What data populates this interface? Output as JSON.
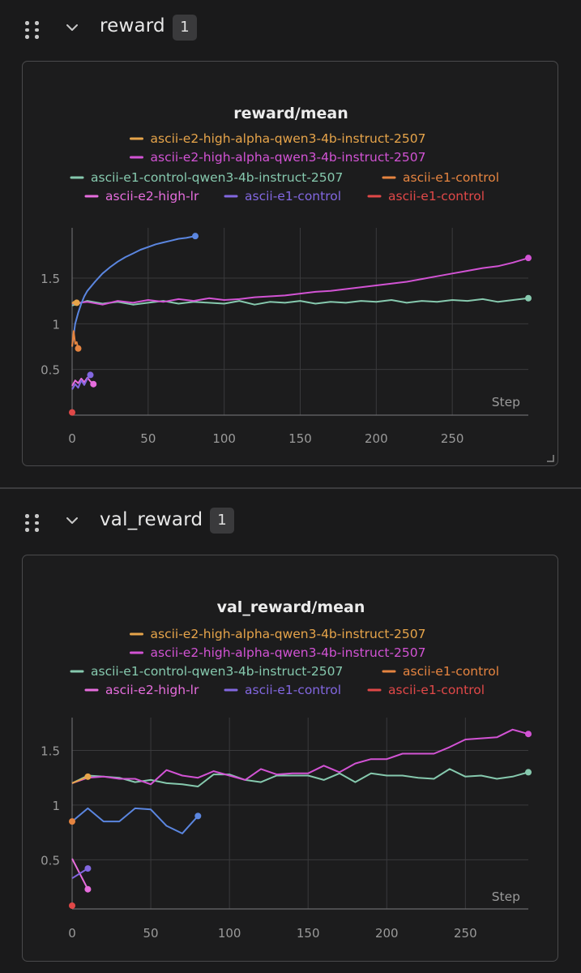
{
  "sections": [
    {
      "title": "reward",
      "badge": "1",
      "chart": {
        "type": "line",
        "title": "reward/mean",
        "xlabel": "Step",
        "ylabel": "",
        "xlim": [
          0,
          300
        ],
        "ylim": [
          0,
          2.05
        ],
        "xticks": [
          0,
          50,
          100,
          150,
          200,
          250
        ],
        "xtick_labels": [
          "0",
          "50",
          "100",
          "150",
          "200",
          "250"
        ],
        "yticks": [
          0.5,
          1,
          1.5
        ],
        "ytick_labels": [
          "0.5",
          "1",
          "1.5"
        ],
        "legend_rows": [
          [
            0
          ],
          [
            1
          ],
          [
            2,
            3
          ],
          [
            4,
            5,
            6
          ]
        ],
        "series": [
          {
            "name": "ascii-e2-high-alpha-qwen3-4b-instruct-2507",
            "color": "#e6a44a",
            "x": [
              0,
              1,
              2,
              3
            ],
            "y": [
              1.22,
              1.24,
              1.21,
              1.23
            ]
          },
          {
            "name": "ascii-e2-high-alpha-qwen3-4b-instruct-2507",
            "color": "#d253d4",
            "x": [
              0,
              10,
              20,
              30,
              40,
              50,
              60,
              70,
              80,
              90,
              100,
              110,
              120,
              130,
              140,
              150,
              160,
              170,
              180,
              190,
              200,
              210,
              220,
              230,
              240,
              250,
              260,
              270,
              280,
              290,
              300
            ],
            "y": [
              1.22,
              1.24,
              1.21,
              1.25,
              1.23,
              1.26,
              1.24,
              1.27,
              1.25,
              1.28,
              1.26,
              1.27,
              1.29,
              1.3,
              1.31,
              1.33,
              1.35,
              1.36,
              1.38,
              1.4,
              1.42,
              1.44,
              1.46,
              1.49,
              1.52,
              1.55,
              1.58,
              1.61,
              1.63,
              1.67,
              1.72
            ]
          },
          {
            "name": "ascii-e1-control-qwen3-4b-instruct-2507",
            "color": "#86c9ae",
            "x": [
              0,
              10,
              20,
              30,
              40,
              50,
              60,
              70,
              80,
              90,
              100,
              110,
              120,
              130,
              140,
              150,
              160,
              170,
              180,
              190,
              200,
              210,
              220,
              230,
              240,
              250,
              260,
              270,
              280,
              290,
              300
            ],
            "y": [
              1.2,
              1.25,
              1.22,
              1.24,
              1.21,
              1.23,
              1.25,
              1.22,
              1.24,
              1.23,
              1.22,
              1.25,
              1.21,
              1.24,
              1.23,
              1.25,
              1.22,
              1.24,
              1.23,
              1.25,
              1.24,
              1.26,
              1.23,
              1.25,
              1.24,
              1.26,
              1.25,
              1.27,
              1.24,
              1.26,
              1.28
            ]
          },
          {
            "name": "ascii-e1-control",
            "color": "#e58440",
            "x": [
              0,
              1,
              2,
              3,
              4
            ],
            "y": [
              0.75,
              0.92,
              0.78,
              0.8,
              0.73
            ]
          },
          {
            "name": "ascii-e2-high-lr",
            "color": "#e66ddd",
            "x": [
              0,
              2,
              4,
              6,
              8,
              10,
              12,
              14
            ],
            "y": [
              0.32,
              0.38,
              0.35,
              0.4,
              0.36,
              0.41,
              0.37,
              0.34
            ]
          },
          {
            "name": "ascii-e1-control",
            "color": "#8267e0",
            "x": [
              0,
              2,
              4,
              6,
              8,
              10,
              12
            ],
            "y": [
              0.28,
              0.34,
              0.3,
              0.38,
              0.33,
              0.4,
              0.44
            ]
          },
          {
            "name": "ascii-e1-control",
            "color": "#e04848",
            "x": [
              0
            ],
            "y": [
              0.03
            ]
          },
          {
            "name": "",
            "color": "#5b86e0",
            "x": [
              0,
              2,
              4,
              6,
              8,
              10,
              15,
              20,
              25,
              30,
              35,
              40,
              45,
              50,
              55,
              60,
              65,
              70,
              75,
              81
            ],
            "y": [
              0.75,
              1.0,
              1.12,
              1.22,
              1.3,
              1.36,
              1.46,
              1.55,
              1.62,
              1.68,
              1.73,
              1.77,
              1.81,
              1.84,
              1.87,
              1.89,
              1.91,
              1.93,
              1.94,
              1.96
            ]
          }
        ]
      }
    },
    {
      "title": "val_reward",
      "badge": "1",
      "chart": {
        "type": "line",
        "title": "val_reward/mean",
        "xlabel": "Step",
        "ylabel": "",
        "xlim": [
          0,
          290
        ],
        "ylim": [
          0.05,
          1.8
        ],
        "xticks": [
          0,
          50,
          100,
          150,
          200,
          250
        ],
        "xtick_labels": [
          "0",
          "50",
          "100",
          "150",
          "200",
          "250"
        ],
        "yticks": [
          0.5,
          1,
          1.5
        ],
        "ytick_labels": [
          "0.5",
          "1",
          "1.5"
        ],
        "legend_rows": [
          [
            0
          ],
          [
            1
          ],
          [
            2,
            3
          ],
          [
            4,
            5,
            6
          ]
        ],
        "series": [
          {
            "name": "ascii-e2-high-alpha-qwen3-4b-instruct-2507",
            "color": "#e6a44a",
            "x": [
              0,
              10
            ],
            "y": [
              1.2,
              1.26
            ]
          },
          {
            "name": "ascii-e2-high-alpha-qwen3-4b-instruct-2507",
            "color": "#d253d4",
            "x": [
              0,
              10,
              20,
              30,
              40,
              50,
              60,
              70,
              80,
              90,
              100,
              110,
              120,
              130,
              140,
              150,
              160,
              170,
              180,
              190,
              200,
              210,
              220,
              230,
              240,
              250,
              260,
              270,
              280,
              290
            ],
            "y": [
              1.2,
              1.25,
              1.26,
              1.24,
              1.24,
              1.19,
              1.32,
              1.27,
              1.25,
              1.31,
              1.27,
              1.23,
              1.33,
              1.28,
              1.29,
              1.29,
              1.36,
              1.3,
              1.38,
              1.42,
              1.42,
              1.47,
              1.47,
              1.47,
              1.53,
              1.6,
              1.61,
              1.62,
              1.69,
              1.65
            ]
          },
          {
            "name": "ascii-e1-control-qwen3-4b-instruct-2507",
            "color": "#86c9ae",
            "x": [
              0,
              10,
              20,
              30,
              40,
              50,
              60,
              70,
              80,
              90,
              100,
              110,
              120,
              130,
              140,
              150,
              160,
              170,
              180,
              190,
              200,
              210,
              220,
              230,
              240,
              250,
              260,
              270,
              280,
              290
            ],
            "y": [
              1.2,
              1.27,
              1.26,
              1.25,
              1.21,
              1.23,
              1.2,
              1.19,
              1.17,
              1.28,
              1.28,
              1.23,
              1.21,
              1.27,
              1.27,
              1.27,
              1.23,
              1.29,
              1.21,
              1.29,
              1.27,
              1.27,
              1.25,
              1.24,
              1.33,
              1.26,
              1.27,
              1.24,
              1.26,
              1.3
            ]
          },
          {
            "name": "ascii-e1-control",
            "color": "#e58440",
            "x": [
              0
            ],
            "y": [
              0.85
            ]
          },
          {
            "name": "ascii-e2-high-lr",
            "color": "#e66ddd",
            "x": [
              0,
              10
            ],
            "y": [
              0.51,
              0.23
            ]
          },
          {
            "name": "ascii-e1-control",
            "color": "#8267e0",
            "x": [
              0,
              10
            ],
            "y": [
              0.33,
              0.42
            ]
          },
          {
            "name": "ascii-e1-control",
            "color": "#e04848",
            "x": [
              0
            ],
            "y": [
              0.08
            ]
          },
          {
            "name": "",
            "color": "#5b86e0",
            "x": [
              0,
              10,
              20,
              30,
              40,
              50,
              60,
              70,
              80
            ],
            "y": [
              0.85,
              0.97,
              0.85,
              0.85,
              0.97,
              0.96,
              0.81,
              0.74,
              0.9
            ]
          }
        ]
      }
    }
  ],
  "chart_data": [
    {
      "type": "line",
      "title": "reward/mean",
      "xlabel": "Step",
      "ylabel": "",
      "xlim": [
        0,
        300
      ],
      "ylim": [
        0,
        2.05
      ],
      "series": [
        {
          "name": "ascii-e2-high-alpha-qwen3-4b-instruct-2507",
          "x": [
            0,
            3
          ],
          "values": [
            1.22,
            1.23
          ]
        },
        {
          "name": "ascii-e2-high-alpha-qwen3-4b-instruct-2507",
          "x": [
            0,
            50,
            100,
            150,
            200,
            250,
            300
          ],
          "values": [
            1.22,
            1.26,
            1.26,
            1.33,
            1.42,
            1.55,
            1.72
          ]
        },
        {
          "name": "ascii-e1-control-qwen3-4b-instruct-2507",
          "x": [
            0,
            50,
            100,
            150,
            200,
            250,
            300
          ],
          "values": [
            1.2,
            1.23,
            1.22,
            1.25,
            1.24,
            1.26,
            1.28
          ]
        },
        {
          "name": "ascii-e1-control",
          "x": [
            0,
            4
          ],
          "values": [
            0.75,
            0.73
          ]
        },
        {
          "name": "ascii-e2-high-lr",
          "x": [
            0,
            14
          ],
          "values": [
            0.32,
            0.34
          ]
        },
        {
          "name": "ascii-e1-control",
          "x": [
            0,
            12
          ],
          "values": [
            0.28,
            0.44
          ]
        },
        {
          "name": "ascii-e1-control",
          "x": [
            0
          ],
          "values": [
            0.03
          ]
        },
        {
          "name": "",
          "x": [
            0,
            20,
            40,
            60,
            81
          ],
          "values": [
            0.75,
            1.55,
            1.77,
            1.89,
            1.96
          ]
        }
      ]
    },
    {
      "type": "line",
      "title": "val_reward/mean",
      "xlabel": "Step",
      "ylabel": "",
      "xlim": [
        0,
        290
      ],
      "ylim": [
        0.05,
        1.8
      ],
      "series": [
        {
          "name": "ascii-e2-high-alpha-qwen3-4b-instruct-2507",
          "x": [
            0,
            10
          ],
          "values": [
            1.2,
            1.26
          ]
        },
        {
          "name": "ascii-e2-high-alpha-qwen3-4b-instruct-2507",
          "x": [
            0,
            50,
            100,
            150,
            200,
            250,
            290
          ],
          "values": [
            1.2,
            1.19,
            1.27,
            1.29,
            1.42,
            1.6,
            1.65
          ]
        },
        {
          "name": "ascii-e1-control-qwen3-4b-instruct-2507",
          "x": [
            0,
            50,
            100,
            150,
            200,
            250,
            290
          ],
          "values": [
            1.2,
            1.23,
            1.28,
            1.27,
            1.27,
            1.26,
            1.3
          ]
        },
        {
          "name": "ascii-e1-control",
          "x": [
            0
          ],
          "values": [
            0.85
          ]
        },
        {
          "name": "ascii-e2-high-lr",
          "x": [
            0,
            10
          ],
          "values": [
            0.51,
            0.23
          ]
        },
        {
          "name": "ascii-e1-control",
          "x": [
            0,
            10
          ],
          "values": [
            0.33,
            0.42
          ]
        },
        {
          "name": "ascii-e1-control",
          "x": [
            0
          ],
          "values": [
            0.08
          ]
        },
        {
          "name": "",
          "x": [
            0,
            40,
            80
          ],
          "values": [
            0.85,
            0.97,
            0.9
          ]
        }
      ]
    }
  ],
  "colors": {
    "background": "#1a1a1b",
    "panel_border": "#4a4a4c",
    "grid": "#3a3a3c",
    "axis_text": "#9a9a9a",
    "title_text": "#ececec"
  }
}
